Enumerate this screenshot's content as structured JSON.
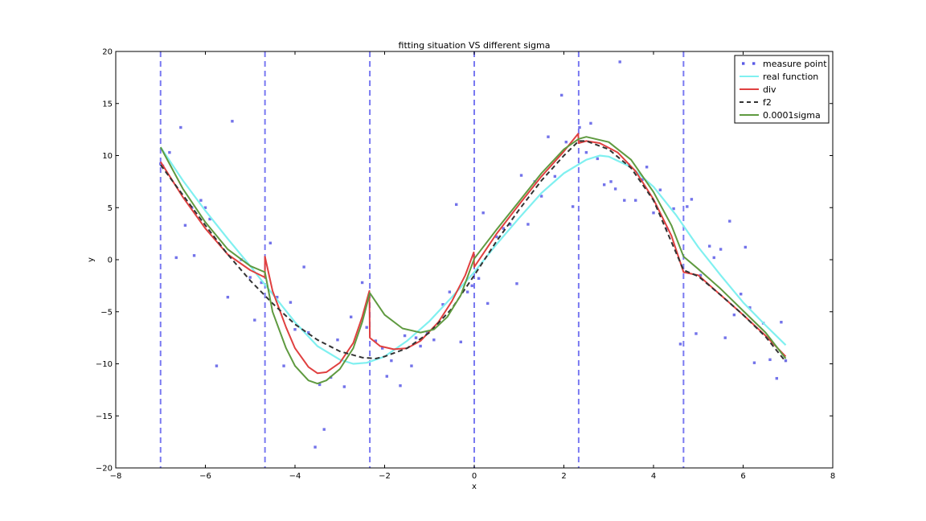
{
  "chart_data": {
    "type": "line",
    "title": "fitting situation VS different sigma",
    "xlabel": "x",
    "ylabel": "y",
    "xlim": [
      -8,
      8
    ],
    "ylim": [
      -20,
      20
    ],
    "xticks": [
      -8,
      -6,
      -4,
      -2,
      0,
      2,
      4,
      6,
      8
    ],
    "yticks": [
      -20,
      -15,
      -10,
      -5,
      0,
      5,
      10,
      15,
      20
    ],
    "xtick_labels": [
      "−8",
      "−6",
      "−4",
      "−2",
      "0",
      "2",
      "4",
      "6",
      "8"
    ],
    "ytick_labels": [
      "−20",
      "−15",
      "−10",
      "−5",
      "0",
      "5",
      "10",
      "15",
      "20"
    ],
    "legend_position": "top-right",
    "vlines": [
      -7.0,
      -4.67,
      -2.33,
      0.0,
      2.33,
      4.67
    ],
    "vline_color": "#6b6bf0",
    "series": [
      {
        "name": "measure point",
        "kind": "scatter",
        "color": "#5a5ae6",
        "points": [
          [
            -7.0,
            9.2
          ],
          [
            -6.95,
            9.0
          ],
          [
            -6.8,
            10.3
          ],
          [
            -6.65,
            0.2
          ],
          [
            -6.55,
            12.7
          ],
          [
            -6.45,
            3.3
          ],
          [
            -6.3,
            5.0
          ],
          [
            -6.25,
            0.4
          ],
          [
            -6.1,
            5.7
          ],
          [
            -6.0,
            5.0
          ],
          [
            -5.9,
            3.9
          ],
          [
            -5.75,
            -10.2
          ],
          [
            -5.5,
            -3.6
          ],
          [
            -5.4,
            13.3
          ],
          [
            -5.2,
            0.0
          ],
          [
            -5.0,
            -1.7
          ],
          [
            -4.9,
            -5.8
          ],
          [
            -4.75,
            -2.2
          ],
          [
            -4.55,
            1.6
          ],
          [
            -4.4,
            -3.6
          ],
          [
            -4.25,
            -10.2
          ],
          [
            -4.1,
            -4.1
          ],
          [
            -4.0,
            -6.7
          ],
          [
            -3.8,
            -0.7
          ],
          [
            -3.7,
            -7.0
          ],
          [
            -3.55,
            -18.0
          ],
          [
            -3.45,
            -12.0
          ],
          [
            -3.35,
            -16.3
          ],
          [
            -3.2,
            -11.3
          ],
          [
            -3.05,
            -7.7
          ],
          [
            -2.9,
            -12.2
          ],
          [
            -2.75,
            -5.5
          ],
          [
            -2.5,
            -2.2
          ],
          [
            -2.4,
            -6.5
          ],
          [
            -2.2,
            -7.8
          ],
          [
            -2.05,
            -8.5
          ],
          [
            -1.95,
            -11.2
          ],
          [
            -1.85,
            -9.7
          ],
          [
            -1.65,
            -12.1
          ],
          [
            -1.55,
            -7.3
          ],
          [
            -1.4,
            -10.2
          ],
          [
            -1.3,
            -7.5
          ],
          [
            -1.2,
            -8.3
          ],
          [
            -1.05,
            -7.0
          ],
          [
            -0.9,
            -7.7
          ],
          [
            -0.7,
            -4.3
          ],
          [
            -0.55,
            -3.1
          ],
          [
            -0.4,
            5.3
          ],
          [
            -0.3,
            -7.9
          ],
          [
            -0.15,
            -3.1
          ],
          [
            -0.05,
            -2.5
          ],
          [
            0.1,
            -1.8
          ],
          [
            0.2,
            4.5
          ],
          [
            0.3,
            -4.2
          ],
          [
            0.5,
            2.2
          ],
          [
            0.65,
            3.0
          ],
          [
            0.8,
            3.4
          ],
          [
            0.95,
            -2.3
          ],
          [
            1.05,
            8.1
          ],
          [
            1.2,
            3.4
          ],
          [
            1.35,
            7.5
          ],
          [
            1.5,
            6.1
          ],
          [
            1.65,
            11.8
          ],
          [
            1.8,
            8.0
          ],
          [
            1.95,
            15.8
          ],
          [
            2.05,
            11.3
          ],
          [
            2.2,
            5.1
          ],
          [
            2.35,
            12.7
          ],
          [
            2.5,
            10.3
          ],
          [
            2.6,
            13.1
          ],
          [
            2.75,
            9.7
          ],
          [
            2.9,
            7.2
          ],
          [
            3.05,
            7.5
          ],
          [
            3.15,
            6.8
          ],
          [
            3.25,
            19.0
          ],
          [
            3.35,
            5.7
          ],
          [
            3.45,
            9.1
          ],
          [
            3.6,
            5.7
          ],
          [
            3.75,
            7.7
          ],
          [
            3.85,
            8.9
          ],
          [
            4.0,
            4.5
          ],
          [
            4.15,
            6.7
          ],
          [
            4.3,
            3.0
          ],
          [
            4.45,
            4.9
          ],
          [
            4.6,
            -8.1
          ],
          [
            4.75,
            5.1
          ],
          [
            4.85,
            5.8
          ],
          [
            4.95,
            -7.1
          ],
          [
            5.05,
            -1.5
          ],
          [
            5.25,
            1.3
          ],
          [
            5.35,
            0.2
          ],
          [
            5.5,
            1.0
          ],
          [
            5.6,
            -7.5
          ],
          [
            5.7,
            3.7
          ],
          [
            5.8,
            -5.3
          ],
          [
            5.95,
            -3.3
          ],
          [
            6.05,
            1.2
          ],
          [
            6.15,
            -4.6
          ],
          [
            6.25,
            -9.9
          ],
          [
            6.45,
            -6.1
          ],
          [
            6.6,
            -9.6
          ],
          [
            6.75,
            -11.4
          ],
          [
            6.85,
            -6.0
          ],
          [
            6.95,
            -9.7
          ]
        ]
      },
      {
        "name": "real function",
        "kind": "line",
        "color": "#80f0f0",
        "points": [
          [
            -7.0,
            10.8
          ],
          [
            -6.5,
            7.6
          ],
          [
            -6.0,
            4.7
          ],
          [
            -5.5,
            2.0
          ],
          [
            -5.0,
            -0.6
          ],
          [
            -4.67,
            -2.4
          ],
          [
            -4.5,
            -3.3
          ],
          [
            -4.0,
            -6.0
          ],
          [
            -3.5,
            -8.3
          ],
          [
            -3.0,
            -9.6
          ],
          [
            -2.7,
            -10.0
          ],
          [
            -2.4,
            -9.9
          ],
          [
            -2.0,
            -9.3
          ],
          [
            -1.5,
            -7.8
          ],
          [
            -1.0,
            -5.9
          ],
          [
            -0.5,
            -3.6
          ],
          [
            0.0,
            -1.2
          ],
          [
            0.5,
            1.5
          ],
          [
            1.0,
            4.0
          ],
          [
            1.5,
            6.4
          ],
          [
            2.0,
            8.3
          ],
          [
            2.5,
            9.6
          ],
          [
            2.8,
            10.0
          ],
          [
            3.0,
            9.9
          ],
          [
            3.5,
            8.9
          ],
          [
            4.0,
            7.0
          ],
          [
            4.5,
            4.3
          ],
          [
            5.0,
            1.2
          ],
          [
            5.5,
            -1.5
          ],
          [
            6.0,
            -4.1
          ],
          [
            6.5,
            -6.3
          ],
          [
            6.95,
            -8.2
          ]
        ]
      },
      {
        "name": "div",
        "kind": "line",
        "color": "#e04040",
        "points": [
          [
            -7.0,
            9.4
          ],
          [
            -6.5,
            6.0
          ],
          [
            -6.0,
            3.0
          ],
          [
            -5.5,
            0.5
          ],
          [
            -5.0,
            -1.0
          ],
          [
            -4.67,
            -1.7
          ],
          [
            -4.67,
            0.3
          ],
          [
            -4.5,
            -3.0
          ],
          [
            -4.2,
            -6.5
          ],
          [
            -4.0,
            -8.5
          ],
          [
            -3.7,
            -10.3
          ],
          [
            -3.5,
            -10.9
          ],
          [
            -3.3,
            -10.8
          ],
          [
            -3.0,
            -9.9
          ],
          [
            -2.7,
            -8.0
          ],
          [
            -2.5,
            -5.5
          ],
          [
            -2.34,
            -3.0
          ],
          [
            -2.33,
            -7.5
          ],
          [
            -2.1,
            -8.3
          ],
          [
            -1.8,
            -8.6
          ],
          [
            -1.5,
            -8.5
          ],
          [
            -1.2,
            -7.8
          ],
          [
            -0.8,
            -6.0
          ],
          [
            -0.5,
            -4.0
          ],
          [
            -0.2,
            -1.5
          ],
          [
            -0.01,
            0.7
          ],
          [
            0.0,
            -0.7
          ],
          [
            0.5,
            2.5
          ],
          [
            1.0,
            5.3
          ],
          [
            1.5,
            8.0
          ],
          [
            2.0,
            10.4
          ],
          [
            2.32,
            12.1
          ],
          [
            2.33,
            11.2
          ],
          [
            2.5,
            11.4
          ],
          [
            2.8,
            11.2
          ],
          [
            3.2,
            10.3
          ],
          [
            3.6,
            8.5
          ],
          [
            4.0,
            5.8
          ],
          [
            4.4,
            2.3
          ],
          [
            4.67,
            -1.2
          ],
          [
            5.0,
            -1.5
          ],
          [
            5.5,
            -3.4
          ],
          [
            6.0,
            -5.3
          ],
          [
            6.5,
            -7.3
          ],
          [
            6.95,
            -9.3
          ]
        ]
      },
      {
        "name": "f2",
        "kind": "line",
        "color": "#333333",
        "points": [
          [
            -7.0,
            9.1
          ],
          [
            -6.5,
            6.2
          ],
          [
            -6.0,
            3.3
          ],
          [
            -5.5,
            0.5
          ],
          [
            -5.0,
            -2.0
          ],
          [
            -4.5,
            -4.2
          ],
          [
            -4.0,
            -6.2
          ],
          [
            -3.5,
            -7.7
          ],
          [
            -3.0,
            -8.8
          ],
          [
            -2.5,
            -9.4
          ],
          [
            -2.2,
            -9.5
          ],
          [
            -2.0,
            -9.3
          ],
          [
            -1.5,
            -8.5
          ],
          [
            -1.0,
            -7.0
          ],
          [
            -0.5,
            -4.7
          ],
          [
            0.0,
            -1.5
          ],
          [
            0.5,
            1.8
          ],
          [
            1.0,
            4.8
          ],
          [
            1.5,
            7.6
          ],
          [
            2.0,
            10.0
          ],
          [
            2.33,
            11.4
          ],
          [
            2.5,
            11.4
          ],
          [
            3.0,
            10.6
          ],
          [
            3.5,
            8.8
          ],
          [
            4.0,
            5.7
          ],
          [
            4.67,
            -1.0
          ],
          [
            5.0,
            -1.6
          ],
          [
            5.5,
            -3.4
          ],
          [
            6.0,
            -5.3
          ],
          [
            6.5,
            -7.4
          ],
          [
            6.95,
            -9.8
          ]
        ]
      },
      {
        "name": "0.0001sigma",
        "kind": "line",
        "color": "#5f9a40",
        "points": [
          [
            -7.0,
            10.8
          ],
          [
            -6.5,
            6.8
          ],
          [
            -6.0,
            3.6
          ],
          [
            -5.5,
            1.0
          ],
          [
            -5.0,
            -0.6
          ],
          [
            -4.67,
            -1.2
          ],
          [
            -4.5,
            -5.0
          ],
          [
            -4.2,
            -8.5
          ],
          [
            -4.0,
            -10.2
          ],
          [
            -3.7,
            -11.6
          ],
          [
            -3.5,
            -11.9
          ],
          [
            -3.3,
            -11.6
          ],
          [
            -3.0,
            -10.5
          ],
          [
            -2.7,
            -8.5
          ],
          [
            -2.5,
            -6.0
          ],
          [
            -2.33,
            -3.2
          ],
          [
            -2.0,
            -5.3
          ],
          [
            -1.6,
            -6.6
          ],
          [
            -1.2,
            -7.0
          ],
          [
            -0.9,
            -6.7
          ],
          [
            -0.6,
            -5.5
          ],
          [
            -0.3,
            -3.4
          ],
          [
            0.0,
            0.1
          ],
          [
            0.5,
            2.9
          ],
          [
            1.0,
            5.6
          ],
          [
            1.5,
            8.3
          ],
          [
            2.0,
            10.6
          ],
          [
            2.33,
            11.6
          ],
          [
            2.5,
            11.8
          ],
          [
            3.0,
            11.3
          ],
          [
            3.5,
            9.6
          ],
          [
            4.0,
            6.5
          ],
          [
            4.4,
            3.3
          ],
          [
            4.67,
            0.3
          ],
          [
            5.0,
            -0.9
          ],
          [
            5.5,
            -2.8
          ],
          [
            6.0,
            -4.9
          ],
          [
            6.5,
            -7.0
          ],
          [
            6.95,
            -9.5
          ]
        ]
      }
    ]
  }
}
